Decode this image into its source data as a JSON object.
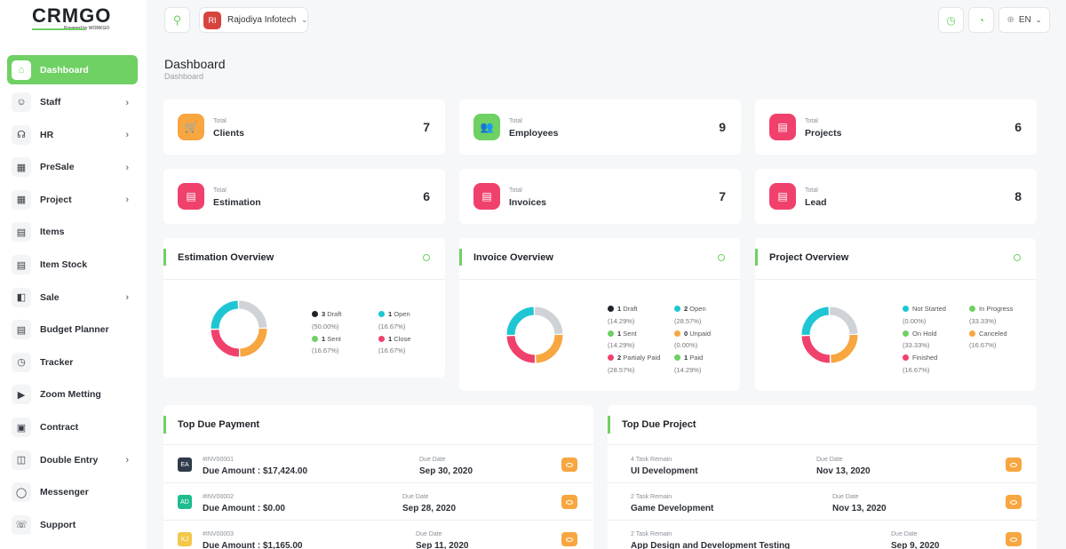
{
  "brand": {
    "logo_text": "CRMGO",
    "logo_sub": "Powered by WORKGO"
  },
  "sidebar": {
    "items": [
      {
        "label": "Dashboard",
        "icon": "home-icon",
        "glyph": "⌂",
        "active": true,
        "chevron": false
      },
      {
        "label": "Staff",
        "icon": "users-icon",
        "glyph": "☺",
        "active": false,
        "chevron": true
      },
      {
        "label": "HR",
        "icon": "hr-icon",
        "glyph": "☊",
        "active": false,
        "chevron": true
      },
      {
        "label": "PreSale",
        "icon": "grid-icon",
        "glyph": "▦",
        "active": false,
        "chevron": true
      },
      {
        "label": "Project",
        "icon": "grid-icon",
        "glyph": "▦",
        "active": false,
        "chevron": true
      },
      {
        "label": "Items",
        "icon": "clipboard-icon",
        "glyph": "▤",
        "active": false,
        "chevron": false
      },
      {
        "label": "Item Stock",
        "icon": "clipboard-icon",
        "glyph": "▤",
        "active": false,
        "chevron": false
      },
      {
        "label": "Sale",
        "icon": "sale-icon",
        "glyph": "◧",
        "active": false,
        "chevron": true
      },
      {
        "label": "Budget Planner",
        "icon": "clipboard-icon",
        "glyph": "▤",
        "active": false,
        "chevron": false
      },
      {
        "label": "Tracker",
        "icon": "alarm-icon",
        "glyph": "◷",
        "active": false,
        "chevron": false
      },
      {
        "label": "Zoom Metting",
        "icon": "video-icon",
        "glyph": "▶",
        "active": false,
        "chevron": false
      },
      {
        "label": "Contract",
        "icon": "contract-icon",
        "glyph": "▣",
        "active": false,
        "chevron": false
      },
      {
        "label": "Double Entry",
        "icon": "ledger-icon",
        "glyph": "◫",
        "active": false,
        "chevron": true
      },
      {
        "label": "Messenger",
        "icon": "chat-icon",
        "glyph": "◯",
        "active": false,
        "chevron": false
      },
      {
        "label": "Support",
        "icon": "headset-icon",
        "glyph": "☏",
        "active": false,
        "chevron": false
      }
    ]
  },
  "topbar": {
    "company_initials": "RI",
    "company_name": "Rajodiya Infotech",
    "language": "EN"
  },
  "header": {
    "title": "Dashboard",
    "breadcrumb": "Dashboard"
  },
  "stats": [
    {
      "small": "Total",
      "label": "Clients",
      "value": "7",
      "color": "#f7a640",
      "icon": "cart-icon",
      "glyph": "🛒"
    },
    {
      "small": "Total",
      "label": "Employees",
      "value": "9",
      "color": "#6fd063",
      "icon": "users-icon",
      "glyph": "👥"
    },
    {
      "small": "Total",
      "label": "Projects",
      "value": "6",
      "color": "#f0416c",
      "icon": "clipboard-icon",
      "glyph": "▤"
    },
    {
      "small": "Total",
      "label": "Estimation",
      "value": "6",
      "color": "#f0416c",
      "icon": "clipboard-icon",
      "glyph": "▤"
    },
    {
      "small": "Total",
      "label": "Invoices",
      "value": "7",
      "color": "#f0416c",
      "icon": "clipboard-icon",
      "glyph": "▤"
    },
    {
      "small": "Total",
      "label": "Lead",
      "value": "8",
      "color": "#f0416c",
      "icon": "clipboard-icon",
      "glyph": "▤"
    }
  ],
  "overviews": [
    {
      "title": "Estimation Overview",
      "legend": [
        {
          "count": "3",
          "name": "Draft",
          "pct": "(50.00%)",
          "color": "#1f2329"
        },
        {
          "count": "1",
          "name": "Open",
          "pct": "(16.67%)",
          "color": "#1ec6d4"
        },
        {
          "count": "1",
          "name": "Sent",
          "pct": "(16.67%)",
          "color": "#6fd063"
        },
        {
          "count": "1",
          "name": "Close",
          "pct": "(16.67%)",
          "color": "#f0416c"
        }
      ]
    },
    {
      "title": "Invoice Overview",
      "legend": [
        {
          "count": "1",
          "name": "Draft",
          "pct": "(14.29%)",
          "color": "#1f2329"
        },
        {
          "count": "2",
          "name": "Open",
          "pct": "(28.57%)",
          "color": "#1ec6d4"
        },
        {
          "count": "1",
          "name": "Sent",
          "pct": "(14.29%)",
          "color": "#6fd063"
        },
        {
          "count": "0",
          "name": "Unpaid",
          "pct": "(0.00%)",
          "color": "#f7a640"
        },
        {
          "count": "2",
          "name": "Partialy Paid",
          "pct": "(28.57%)",
          "color": "#f0416c"
        },
        {
          "count": "1",
          "name": "Paid",
          "pct": "(14.29%)",
          "color": "#6fd063"
        }
      ]
    },
    {
      "title": "Project Overview",
      "legend": [
        {
          "count": "",
          "name": "Not Started",
          "pct": "(0.00%)",
          "color": "#1ec6d4"
        },
        {
          "count": "",
          "name": "In Progress",
          "pct": "(33.33%)",
          "color": "#6fd063"
        },
        {
          "count": "",
          "name": "On Hold",
          "pct": "(33.33%)",
          "color": "#6fd063"
        },
        {
          "count": "",
          "name": "Canceled",
          "pct": "(16.67%)",
          "color": "#f7a640"
        },
        {
          "count": "",
          "name": "Finished",
          "pct": "(16.67%)",
          "color": "#f0416c"
        }
      ]
    }
  ],
  "donut_segments": [
    "#cfd3d8",
    "#f7a640",
    "#f0416c",
    "#1ec6d4"
  ],
  "top_due_payment": {
    "title": "Top Due Payment",
    "rows": [
      {
        "avatar": "EA",
        "avatar_color": "#2f3b4a",
        "invoice": "#INV00001",
        "amount": "Due Amount : $17,424.00",
        "date_label": "Due Date",
        "date": "Sep 30, 2020"
      },
      {
        "avatar": "AD",
        "avatar_color": "#1ebc8f",
        "invoice": "#INV00002",
        "amount": "Due Amount : $0.00",
        "date_label": "Due Date",
        "date": "Sep 28, 2020"
      },
      {
        "avatar": "KJ",
        "avatar_color": "#f3c84a",
        "invoice": "#INV00003",
        "amount": "Due Amount : $1,165.00",
        "date_label": "Due Date",
        "date": "Sep 11, 2020"
      }
    ]
  },
  "top_due_project": {
    "title": "Top Due Project",
    "rows": [
      {
        "remain": "4 Task Remain",
        "name": "UI Development",
        "date_label": "Due Date",
        "date": "Nov 13, 2020"
      },
      {
        "remain": "2 Task Remain",
        "name": "Game Development",
        "date_label": "Due Date",
        "date": "Nov 13, 2020"
      },
      {
        "remain": "2 Task Remain",
        "name": "App Design and Development Testing",
        "date_label": "Due Date",
        "date": "Sep 9, 2020"
      }
    ]
  }
}
